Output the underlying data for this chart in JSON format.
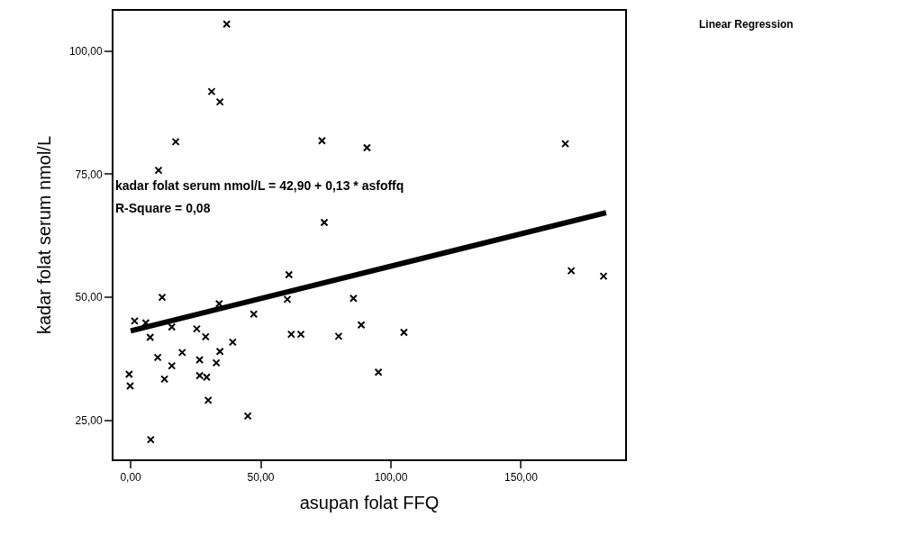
{
  "chart_data": {
    "type": "scatter",
    "xlabel": "asupan folat FFQ",
    "ylabel": "kadar folat serum nmol/L",
    "annotations": [
      "kadar folat serum nmol/L = 42,90 + 0,13 * asfoffq",
      "R-Square = 0,08",
      "Linear Regression"
    ],
    "xlim": [
      -6.6,
      190
    ],
    "ylim": [
      17.1,
      108.2
    ],
    "xticks": [
      {
        "value": 0,
        "label": "0,00"
      },
      {
        "value": 50,
        "label": "50,00"
      },
      {
        "value": 100,
        "label": "100,00"
      },
      {
        "value": 150,
        "label": "150,00"
      }
    ],
    "yticks": [
      {
        "value": 25,
        "label": "25,00"
      },
      {
        "value": 50,
        "label": "50,00"
      },
      {
        "value": 75,
        "label": "75,00"
      },
      {
        "value": 100,
        "label": "100,00"
      }
    ],
    "series": [
      {
        "marker": "cross",
        "color": "#000000",
        "x": [
          36.9,
          31.1,
          34.3,
          17.3,
          10.7,
          73.5,
          90.8,
          74.4,
          167,
          169.3,
          181.7,
          105,
          95.2,
          60.8,
          12.1,
          1.5,
          5.8,
          15.8,
          34,
          47.3,
          60.2,
          85.6,
          88.6,
          79.9,
          61.7,
          65.4,
          7.5,
          25.4,
          28.8,
          39.2,
          10.4,
          19.8,
          34.3,
          15.8,
          26.5,
          32.9,
          -0.6,
          -0.2,
          13,
          26.5,
          29.2,
          29.8,
          45,
          7.7
        ],
        "values": [
          105.5,
          91.8,
          89.7,
          81.6,
          75.8,
          81.8,
          80.4,
          65.2,
          81.2,
          55.4,
          54.3,
          42.9,
          34.8,
          54.6,
          50,
          45.2,
          44.8,
          44,
          48.7,
          46.6,
          49.6,
          49.8,
          44.4,
          42.1,
          42.5,
          42.5,
          41.9,
          43.6,
          42,
          40.9,
          37.8,
          38.8,
          39,
          36.1,
          37.3,
          36.7,
          34.4,
          32,
          33.4,
          34.1,
          33.8,
          29.1,
          25.9,
          21.1
        ]
      },
      {
        "type": "line",
        "color": "#000000",
        "x": [
          0,
          182.7
        ],
        "values": [
          43.2,
          67.2
        ]
      }
    ]
  }
}
